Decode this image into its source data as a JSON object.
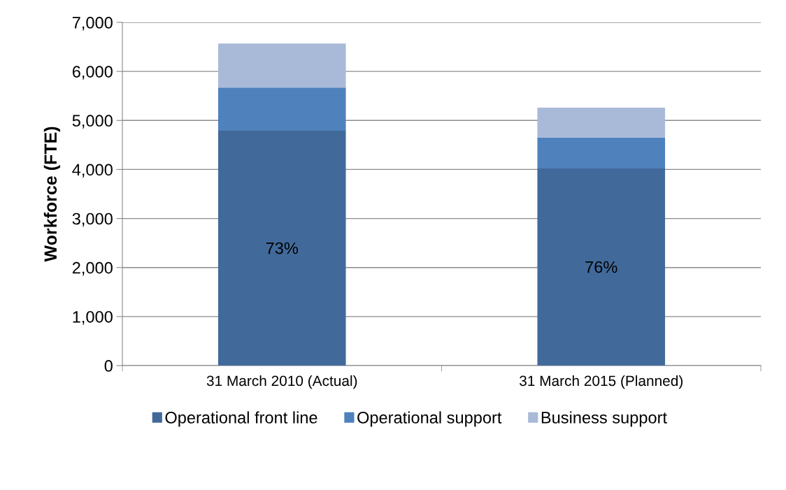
{
  "chart_data": {
    "type": "bar",
    "stacked": true,
    "ylabel": "Workforce (FTE)",
    "categories": [
      "31 March 2010 (Actual)",
      "31 March 2015 (Planned)"
    ],
    "series": [
      {
        "name": "Operational front line",
        "color": "#416a9b",
        "values": [
          4790,
          4020
        ]
      },
      {
        "name": "Operational support",
        "color": "#4f81bd",
        "values": [
          880,
          630
        ]
      },
      {
        "name": "Business support",
        "color": "#a9b9d8",
        "values": [
          900,
          610
        ]
      }
    ],
    "ylim": [
      0,
      7000
    ],
    "yticks": [
      {
        "value": 0,
        "label": "0"
      },
      {
        "value": 1000,
        "label": "1,000"
      },
      {
        "value": 2000,
        "label": "2,000"
      },
      {
        "value": 3000,
        "label": "3,000"
      },
      {
        "value": 4000,
        "label": "4,000"
      },
      {
        "value": 5000,
        "label": "5,000"
      },
      {
        "value": 6000,
        "label": "6,000"
      },
      {
        "value": 7000,
        "label": "7,000"
      }
    ],
    "annotations": [
      "73%",
      "76%"
    ],
    "grid": "y",
    "legend": "bottom"
  }
}
